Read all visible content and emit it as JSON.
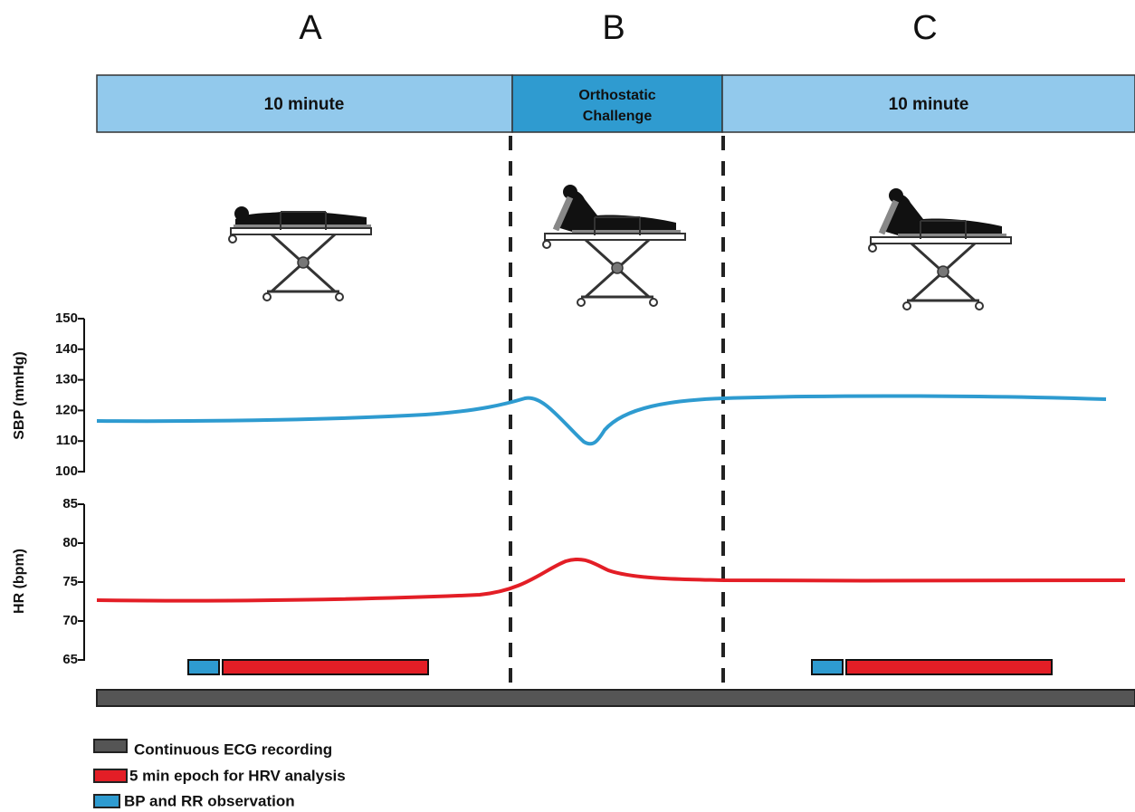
{
  "phases": [
    {
      "letter": "A",
      "label": "10 minute"
    },
    {
      "letter": "B",
      "label": [
        "Orthostatic",
        "Challenge"
      ]
    },
    {
      "letter": "C",
      "label": "10 minute"
    }
  ],
  "sbp_axis": {
    "label": "SBP (mmHg)",
    "ticks": [
      150,
      140,
      130,
      120,
      110,
      100
    ]
  },
  "hr_axis": {
    "label": "HR (bpm)",
    "ticks": [
      85,
      80,
      75,
      70,
      65
    ]
  },
  "legend": [
    "Continuous ECG recording",
    "5 min epoch for HRV analysis",
    "BP and RR observation"
  ]
}
